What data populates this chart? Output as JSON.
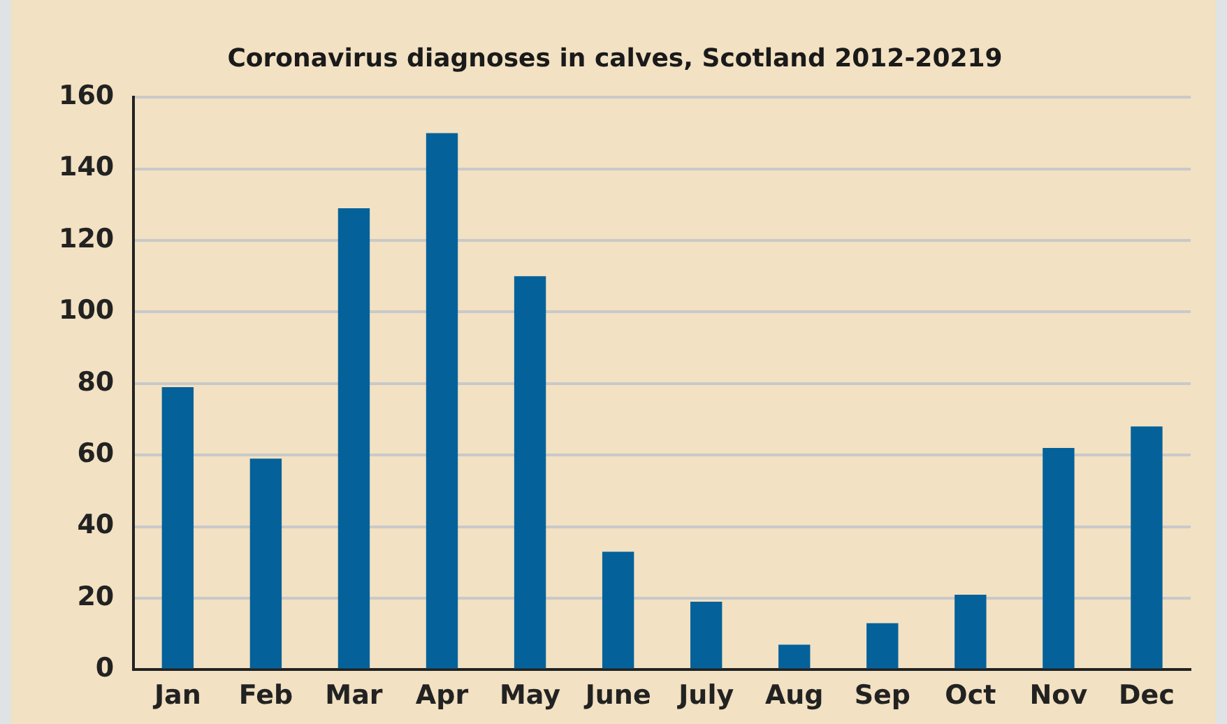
{
  "chart_data": {
    "type": "bar",
    "title": "Coronavirus diagnoses in calves, Scotland 2012-20219",
    "categories": [
      "Jan",
      "Feb",
      "Mar",
      "Apr",
      "May",
      "June",
      "July",
      "Aug",
      "Sep",
      "Oct",
      "Nov",
      "Dec"
    ],
    "values": [
      79,
      59,
      129,
      150,
      110,
      33,
      19,
      7,
      13,
      21,
      62,
      68
    ],
    "color": "#04619a",
    "ylim": [
      0,
      160
    ],
    "yticks": [
      0,
      20,
      40,
      60,
      80,
      100,
      120,
      140,
      160
    ],
    "grid": "y",
    "legend": false
  }
}
